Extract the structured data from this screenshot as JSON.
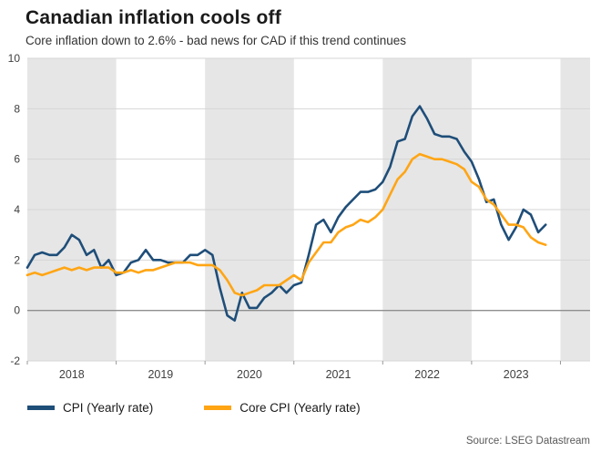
{
  "header": {
    "title": "Canadian inflation cools off",
    "subtitle": "Core inflation down to 2.6% - bad news for CAD if this trend continues"
  },
  "source": "Source: LSEG Datastream",
  "legend": {
    "items": [
      {
        "label": "CPI (Yearly rate)",
        "color": "#1f4e79"
      },
      {
        "label": "Core CPI (Yearly rate)",
        "color": "#ffa514"
      }
    ]
  },
  "chart_data": {
    "type": "line",
    "title": "Canadian inflation cools off",
    "subtitle": "Core inflation down to 2.6% - bad news for CAD if this trend continues",
    "xlabel": "",
    "ylabel": "",
    "ylim": [
      -2,
      10
    ],
    "yticks": [
      -2,
      0,
      2,
      4,
      6,
      8,
      10
    ],
    "grid": true,
    "zero_line": true,
    "band_color": "#e6e6e6",
    "legend_position": "bottom-left",
    "year_labels": [
      "2018",
      "2019",
      "2020",
      "2021",
      "2022",
      "2023"
    ],
    "x": [
      "2018-01",
      "2018-02",
      "2018-03",
      "2018-04",
      "2018-05",
      "2018-06",
      "2018-07",
      "2018-08",
      "2018-09",
      "2018-10",
      "2018-11",
      "2018-12",
      "2019-01",
      "2019-02",
      "2019-03",
      "2019-04",
      "2019-05",
      "2019-06",
      "2019-07",
      "2019-08",
      "2019-09",
      "2019-10",
      "2019-11",
      "2019-12",
      "2020-01",
      "2020-02",
      "2020-03",
      "2020-04",
      "2020-05",
      "2020-06",
      "2020-07",
      "2020-08",
      "2020-09",
      "2020-10",
      "2020-11",
      "2020-12",
      "2021-01",
      "2021-02",
      "2021-03",
      "2021-04",
      "2021-05",
      "2021-06",
      "2021-07",
      "2021-08",
      "2021-09",
      "2021-10",
      "2021-11",
      "2021-12",
      "2022-01",
      "2022-02",
      "2022-03",
      "2022-04",
      "2022-05",
      "2022-06",
      "2022-07",
      "2022-08",
      "2022-09",
      "2022-10",
      "2022-11",
      "2022-12",
      "2023-01",
      "2023-02",
      "2023-03",
      "2023-04",
      "2023-05",
      "2023-06",
      "2023-07",
      "2023-08",
      "2023-09",
      "2023-10",
      "2023-11"
    ],
    "series": [
      {
        "name": "CPI (Yearly rate)",
        "color": "#1f4e79",
        "values": [
          1.7,
          2.2,
          2.3,
          2.2,
          2.2,
          2.5,
          3.0,
          2.8,
          2.2,
          2.4,
          1.7,
          2.0,
          1.4,
          1.5,
          1.9,
          2.0,
          2.4,
          2.0,
          2.0,
          1.9,
          1.9,
          1.9,
          2.2,
          2.2,
          2.4,
          2.2,
          0.9,
          -0.2,
          -0.4,
          0.7,
          0.1,
          0.1,
          0.5,
          0.7,
          1.0,
          0.7,
          1.0,
          1.1,
          2.2,
          3.4,
          3.6,
          3.1,
          3.7,
          4.1,
          4.4,
          4.7,
          4.7,
          4.8,
          5.1,
          5.7,
          6.7,
          6.8,
          7.7,
          8.1,
          7.6,
          7.0,
          6.9,
          6.9,
          6.8,
          6.3,
          5.9,
          5.2,
          4.3,
          4.4,
          3.4,
          2.8,
          3.3,
          4.0,
          3.8,
          3.1,
          3.4
        ]
      },
      {
        "name": "Core CPI (Yearly rate)",
        "color": "#ffa514",
        "values": [
          1.4,
          1.5,
          1.4,
          1.5,
          1.6,
          1.7,
          1.6,
          1.7,
          1.6,
          1.7,
          1.7,
          1.7,
          1.5,
          1.5,
          1.6,
          1.5,
          1.6,
          1.6,
          1.7,
          1.8,
          1.9,
          1.9,
          1.9,
          1.8,
          1.8,
          1.8,
          1.6,
          1.2,
          0.7,
          0.6,
          0.7,
          0.8,
          1.0,
          1.0,
          1.0,
          1.2,
          1.4,
          1.2,
          1.9,
          2.3,
          2.7,
          2.7,
          3.1,
          3.3,
          3.4,
          3.6,
          3.5,
          3.7,
          4.0,
          4.6,
          5.2,
          5.5,
          6.0,
          6.2,
          6.1,
          6.0,
          6.0,
          5.9,
          5.8,
          5.6,
          5.1,
          4.9,
          4.4,
          4.2,
          3.8,
          3.4,
          3.4,
          3.3,
          2.9,
          2.7,
          2.6
        ]
      }
    ]
  }
}
